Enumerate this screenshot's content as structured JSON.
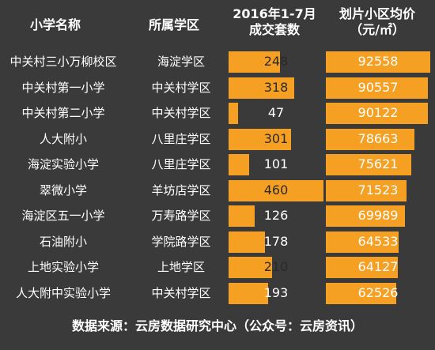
{
  "chart_data": {
    "type": "table",
    "headers": {
      "name": "小学名称",
      "district": "所属学区",
      "deals_line1": "2016年1-7月",
      "deals_line2": "成交套数",
      "price_line1": "划片小区均价",
      "price_line2": "（元/㎡）"
    },
    "rows": [
      {
        "name": "中关村三小万柳校区",
        "district": "海淀学区",
        "deals": 248,
        "price": 92558
      },
      {
        "name": "中关村第一小学",
        "district": "中关村学区",
        "deals": 318,
        "price": 90557
      },
      {
        "name": "中关村第二小学",
        "district": "中关村学区",
        "deals": 47,
        "price": 90122
      },
      {
        "name": "人大附小",
        "district": "八里庄学区",
        "deals": 301,
        "price": 78663
      },
      {
        "name": "海淀实验小学",
        "district": "八里庄学区",
        "deals": 101,
        "price": 75621
      },
      {
        "name": "翠微小学",
        "district": "羊坊店学区",
        "deals": 460,
        "price": 71523
      },
      {
        "name": "海淀区五一小学",
        "district": "万寿路学区",
        "deals": 126,
        "price": 69989
      },
      {
        "name": "石油附小",
        "district": "学院路学区",
        "deals": 178,
        "price": 64533
      },
      {
        "name": "上地实验小学",
        "district": "上地学区",
        "deals": 210,
        "price": 64127
      },
      {
        "name": "人大附中实验小学",
        "district": "中关村学区",
        "deals": 193,
        "price": 62526
      }
    ],
    "deals_max": 460,
    "price_max": 92558,
    "footer": "数据来源：云房数据研究中心（公众号：云房资讯）",
    "colors": {
      "background": "#3a3a3a",
      "bar": "#f5a023",
      "text": "#ffffff"
    }
  }
}
